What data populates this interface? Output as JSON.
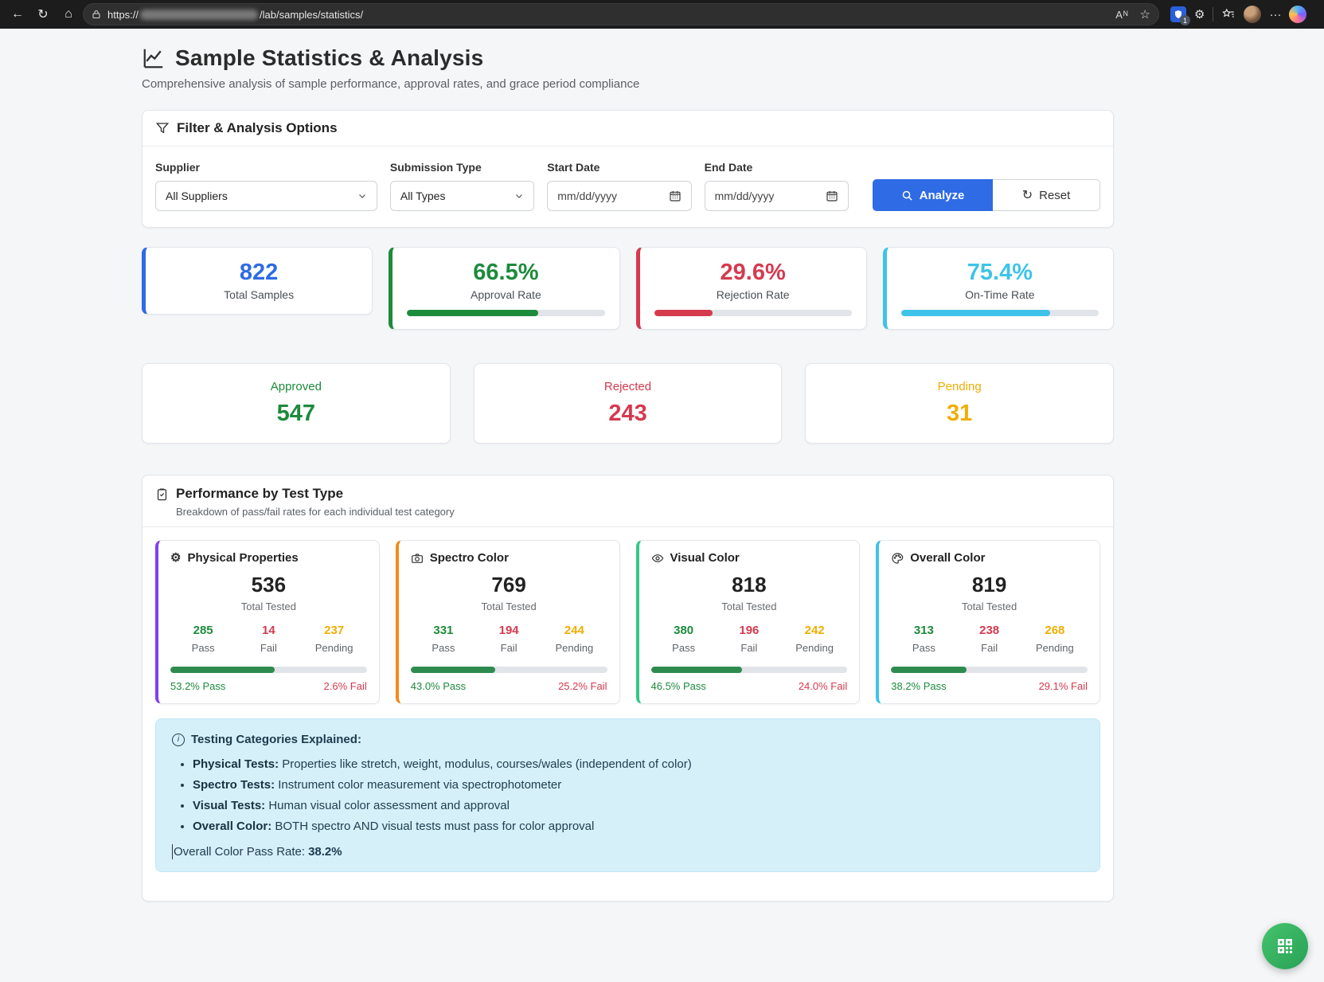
{
  "browser": {
    "url_scheme": "https://",
    "url_path": "/lab/samples/statistics/",
    "read_aloud": "Aᴺ",
    "shield_badge": "1",
    "menu_dots": "···"
  },
  "page": {
    "title": "Sample Statistics & Analysis",
    "subtitle": "Comprehensive analysis of sample performance, approval rates, and grace period compliance"
  },
  "filter": {
    "title": "Filter & Analysis Options",
    "supplier": {
      "label": "Supplier",
      "value": "All Suppliers"
    },
    "submission_type": {
      "label": "Submission Type",
      "value": "All Types"
    },
    "start_date": {
      "label": "Start Date",
      "placeholder": "mm/dd/yyyy"
    },
    "end_date": {
      "label": "End Date",
      "placeholder": "mm/dd/yyyy"
    },
    "analyze_label": "Analyze",
    "reset_label": "Reset",
    "reset_glyph": "↻"
  },
  "kpis": [
    {
      "value": "822",
      "label": "Total Samples",
      "accent": "#2e6be5"
    },
    {
      "value": "66.5%",
      "label": "Approval Rate",
      "accent": "#1e8a3c",
      "progress": 66.5
    },
    {
      "value": "29.6%",
      "label": "Rejection Rate",
      "accent": "#d53a4f",
      "progress": 29.6
    },
    {
      "value": "75.4%",
      "label": "On-Time Rate",
      "accent": "#3fc3e8",
      "progress": 75.4
    }
  ],
  "statuses": [
    {
      "label": "Approved",
      "value": "547",
      "color": "#1e8a3c"
    },
    {
      "label": "Rejected",
      "value": "243",
      "color": "#d53a4f"
    },
    {
      "label": "Pending",
      "value": "31",
      "color": "#efae03"
    }
  ],
  "performance": {
    "title": "Performance by Test Type",
    "subtitle": "Breakdown of pass/fail rates for each individual test category",
    "total_label": "Total Tested",
    "pass_label": "Pass",
    "fail_label": "Fail",
    "pending_label": "Pending",
    "bar_fill_color": "#2e8b50",
    "cards": [
      {
        "name": "Physical Properties",
        "icon": "gear",
        "accent": "#8040f0",
        "total": "536",
        "pass": "285",
        "fail": "14",
        "pending": "237",
        "pass_rate": 53.2,
        "pass_text": "53.2% Pass",
        "fail_text": "2.6% Fail"
      },
      {
        "name": "Spectro Color",
        "icon": "camera",
        "accent": "#f28c18",
        "total": "769",
        "pass": "331",
        "fail": "194",
        "pending": "244",
        "pass_rate": 43.0,
        "pass_text": "43.0% Pass",
        "fail_text": "25.2% Fail"
      },
      {
        "name": "Visual Color",
        "icon": "eye",
        "accent": "#36c786",
        "total": "818",
        "pass": "380",
        "fail": "196",
        "pending": "242",
        "pass_rate": 46.5,
        "pass_text": "46.5% Pass",
        "fail_text": "24.0% Fail"
      },
      {
        "name": "Overall Color",
        "icon": "palette",
        "accent": "#3fc3e8",
        "total": "819",
        "pass": "313",
        "fail": "238",
        "pending": "268",
        "pass_rate": 38.2,
        "pass_text": "38.2% Pass",
        "fail_text": "29.1% Fail"
      }
    ]
  },
  "info_box": {
    "title": "Testing Categories Explained:",
    "bullets": [
      {
        "lead": "Physical Tests:",
        "text": " Properties like stretch, weight, modulus, courses/wales (independent of color)"
      },
      {
        "lead": "Spectro Tests:",
        "text": " Instrument color measurement via spectrophotometer"
      },
      {
        "lead": "Visual Tests:",
        "text": " Human visual color assessment and approval"
      },
      {
        "lead": "Overall Color:",
        "text": " BOTH spectro AND visual tests must pass for color approval"
      }
    ],
    "footer_label": "Overall Color Pass Rate:",
    "footer_value": "38.2%"
  }
}
